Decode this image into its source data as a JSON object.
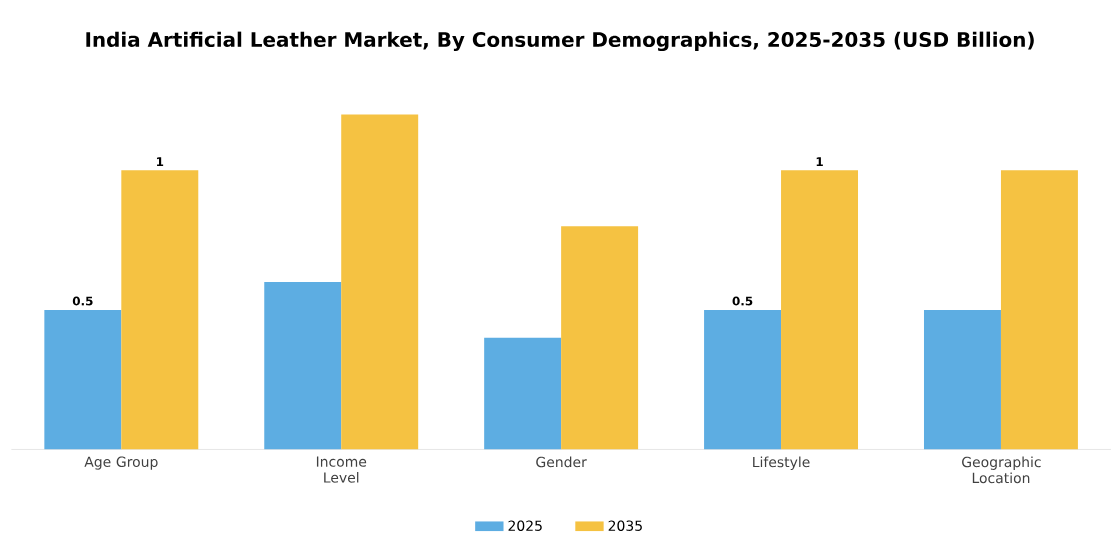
{
  "chart_data": {
    "type": "bar",
    "title": "India Artificial Leather Market, By Consumer Demographics, 2025-2035 (USD Billion)",
    "categories": [
      "Age Group",
      "Income Level",
      "Gender",
      "Lifestyle",
      "Geographic Location"
    ],
    "series": [
      {
        "name": "2025",
        "color": "#5dade2",
        "values": [
          0.5,
          0.6,
          0.4,
          0.5,
          0.5
        ],
        "value_labels": [
          "0.5",
          null,
          null,
          "0.5",
          null
        ]
      },
      {
        "name": "2035",
        "color": "#f5c242",
        "values": [
          1.0,
          1.2,
          0.8,
          1.0,
          1.0
        ],
        "value_labels": [
          "1",
          null,
          null,
          "1",
          null
        ]
      }
    ],
    "legend": "bottom",
    "grid": false
  }
}
